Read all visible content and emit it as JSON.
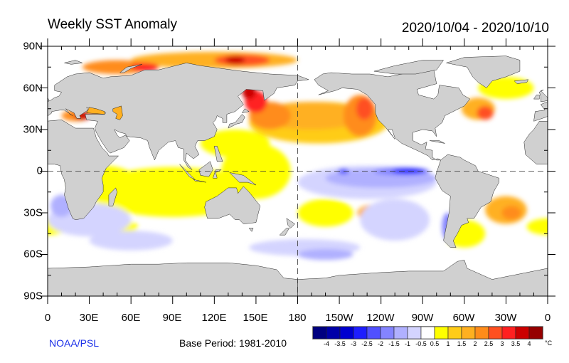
{
  "title": "Weekly SST Anomaly",
  "date_range": "2020/10/04 - 2020/10/10",
  "lat_labels": [
    "90N",
    "60N",
    "30N",
    "0",
    "30S",
    "60S",
    "90S"
  ],
  "lon_labels": [
    "0",
    "30E",
    "60E",
    "90E",
    "120E",
    "150E",
    "180",
    "150W",
    "120W",
    "90W",
    "60W",
    "30W",
    "0"
  ],
  "footer": {
    "org": "NOAA/PSL",
    "base_period": "Base Period: 1981-2010"
  },
  "colorbar": {
    "labels": [
      "-4",
      "-3.5",
      "-3",
      "-2.5",
      "-2",
      "-1.5",
      "-1",
      "-0.5",
      "0.5",
      "1",
      "1.5",
      "2",
      "2.5",
      "3",
      "3.5",
      "4"
    ],
    "colors": [
      "#000080",
      "#0000a8",
      "#0000d0",
      "#1e1eff",
      "#5050ff",
      "#8484ff",
      "#b0b0ff",
      "#d4d4ff",
      "#ffffff",
      "#ffff00",
      "#ffcc18",
      "#ffb020",
      "#ff8c1a",
      "#ff5020",
      "#ff2020",
      "#cc0000",
      "#960000"
    ],
    "unit": "°C"
  },
  "colors": {
    "land": "#d0d0d0",
    "org_text": "#1a2ee8"
  }
}
